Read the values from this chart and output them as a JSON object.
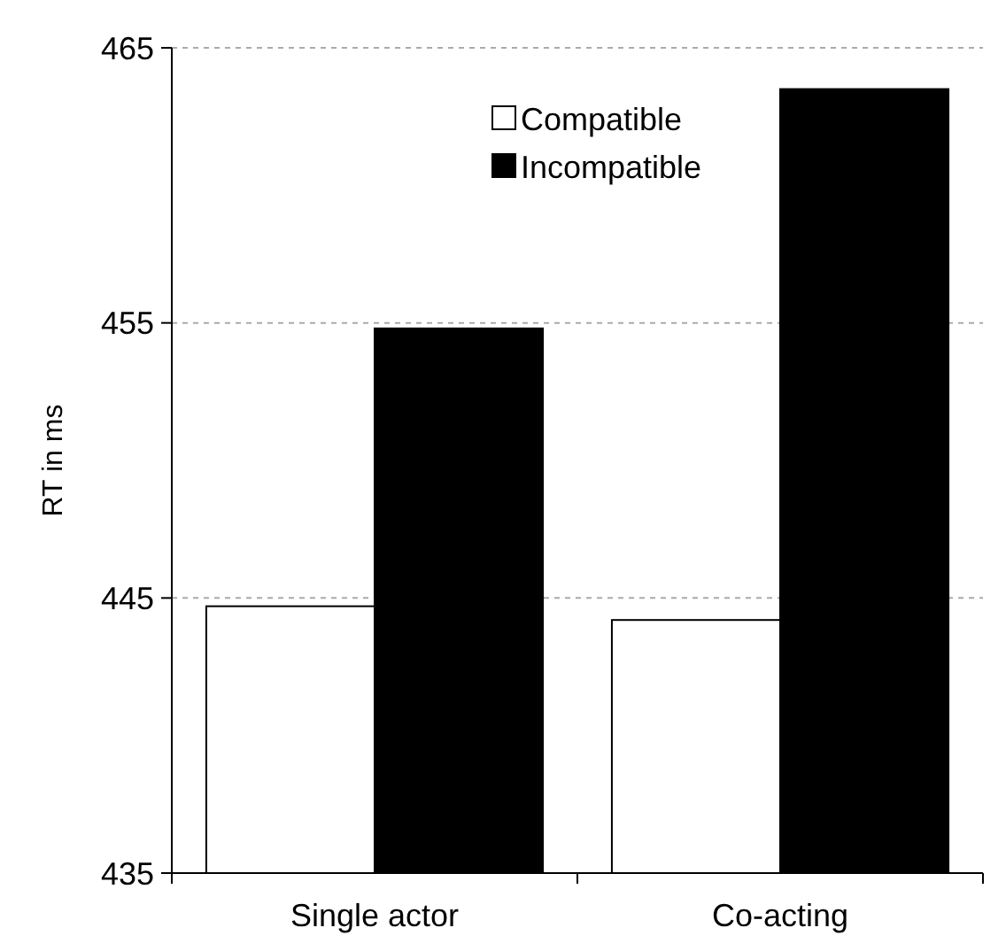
{
  "chart_data": {
    "type": "bar",
    "ylabel": "RT in ms",
    "categories": [
      "Single actor",
      "Co-acting"
    ],
    "series": [
      {
        "name": "Compatible",
        "color": "#ffffff",
        "values": [
          444.7,
          444.2
        ]
      },
      {
        "name": "Incompatible",
        "color": "#000000",
        "values": [
          454.8,
          463.5
        ]
      }
    ],
    "ylim": [
      435,
      465
    ],
    "yticks": [
      435,
      445,
      455,
      465
    ],
    "grid": "y",
    "legend": "top right"
  }
}
